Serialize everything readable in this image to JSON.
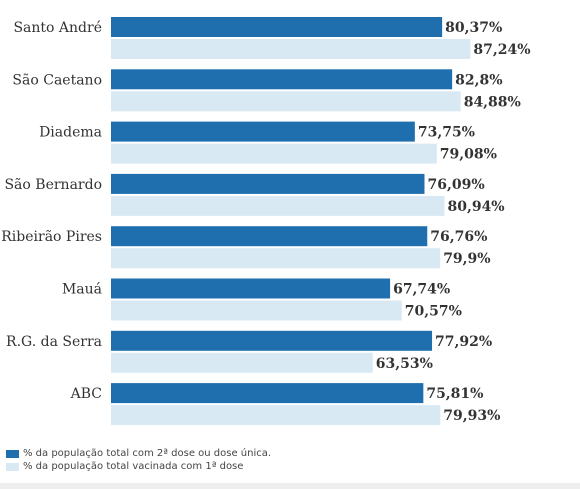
{
  "chart_data": {
    "type": "bar",
    "orientation": "horizontal",
    "categories": [
      "Santo André",
      "São Caetano",
      "Diadema",
      "São Bernardo",
      "Ribeirão Pires",
      "Mauá",
      "R.G. da Serra",
      "ABC"
    ],
    "series": [
      {
        "name": "% da população total com 2ª dose ou dose única.",
        "color": "#1f6fae",
        "values": [
          80.37,
          82.8,
          73.75,
          76.09,
          76.76,
          67.74,
          77.92,
          75.81
        ],
        "labels": [
          "80,37%",
          "82,8%",
          "73,75%",
          "76,09%",
          "76,76%",
          "67,74%",
          "77,92%",
          "75,81%"
        ]
      },
      {
        "name": "% da população total vacinada com 1ª dose",
        "color": "#d9e9f4",
        "values": [
          87.24,
          84.88,
          79.08,
          80.94,
          79.9,
          70.57,
          63.53,
          79.93
        ],
        "labels": [
          "87,24%",
          "84,88%",
          "79,08%",
          "80,94%",
          "79,9%",
          "70,57%",
          "63,53%",
          "79,93%"
        ]
      }
    ],
    "xlim": [
      0,
      100
    ],
    "grid": false,
    "legend_position": "bottom-left"
  }
}
